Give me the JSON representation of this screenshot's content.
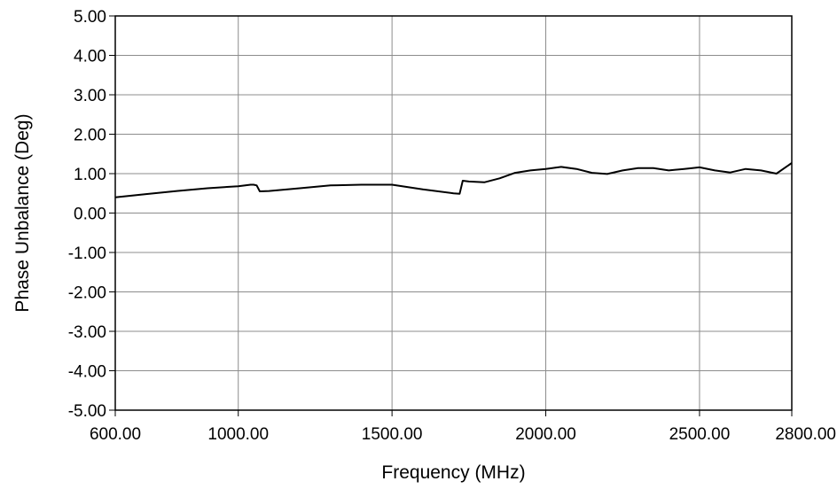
{
  "chart_data": {
    "type": "line",
    "title": "",
    "xlabel": "Frequency (MHz)",
    "ylabel": "Phase Unbalance (Deg)",
    "xlim": [
      600,
      2800
    ],
    "ylim": [
      -5,
      5
    ],
    "grid": true,
    "legend": "none",
    "x_ticks": [
      600,
      1000,
      1500,
      2000,
      2500,
      2800
    ],
    "x_tick_labels": [
      "600.00",
      "1000.00",
      "1500.00",
      "2000.00",
      "2500.00",
      "2800.00"
    ],
    "y_ticks": [
      5,
      4,
      3,
      2,
      1,
      0,
      -1,
      -2,
      -3,
      -4,
      -5
    ],
    "y_tick_labels": [
      "5.00",
      "4.00",
      "3.00",
      "2.00",
      "1.00",
      "0.00",
      "-1.00",
      "-2.00",
      "-3.00",
      "-4.00",
      "-5.00"
    ],
    "series": [
      {
        "color": "#000000",
        "x": [
          600,
          700,
          800,
          900,
          1000,
          1040,
          1050,
          1060,
          1070,
          1100,
          1200,
          1300,
          1400,
          1500,
          1600,
          1700,
          1720,
          1730,
          1750,
          1800,
          1850,
          1900,
          1950,
          2000,
          2050,
          2100,
          2150,
          2200,
          2250,
          2300,
          2350,
          2400,
          2450,
          2500,
          2550,
          2600,
          2650,
          2700,
          2750,
          2800
        ],
        "y": [
          0.4,
          0.48,
          0.56,
          0.63,
          0.68,
          0.72,
          0.72,
          0.7,
          0.55,
          0.56,
          0.63,
          0.7,
          0.72,
          0.72,
          0.6,
          0.5,
          0.49,
          0.82,
          0.8,
          0.78,
          0.88,
          1.02,
          1.08,
          1.12,
          1.17,
          1.12,
          1.02,
          0.99,
          1.08,
          1.14,
          1.14,
          1.08,
          1.12,
          1.16,
          1.08,
          1.03,
          1.12,
          1.08,
          1.0,
          1.27
        ]
      }
    ]
  }
}
